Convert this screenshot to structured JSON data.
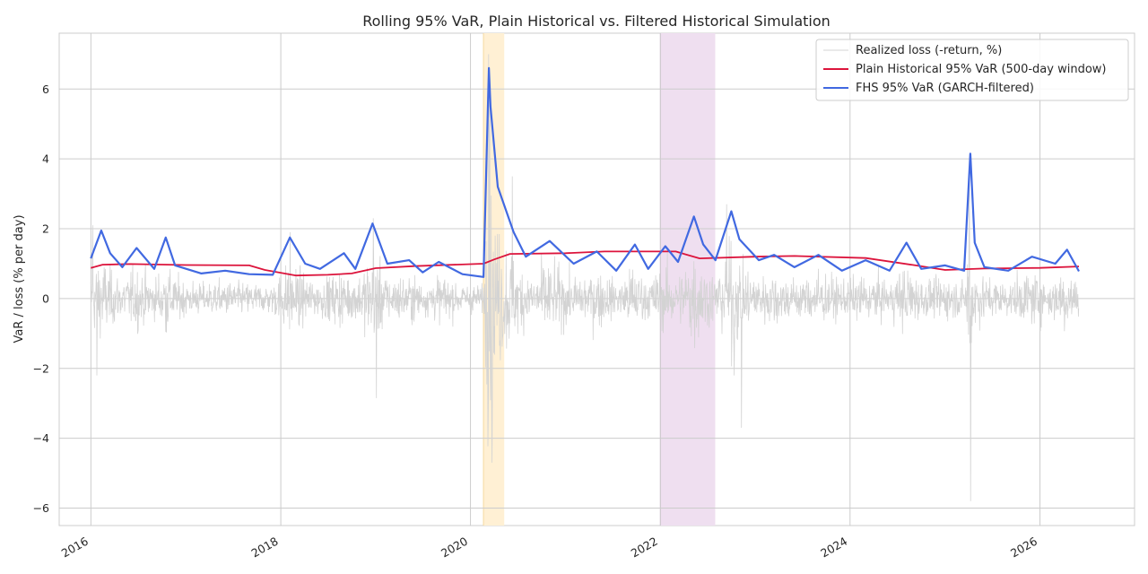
{
  "chart_data": {
    "type": "line",
    "title": "Rolling 95% VaR, Plain Historical vs. Filtered Historical Simulation",
    "xlabel": "",
    "ylabel": "VaR / loss (% per day)",
    "x_ticks": [
      "2016",
      "2018",
      "2020",
      "2022",
      "2024",
      "2026"
    ],
    "y_ticks": [
      "−6",
      "−4",
      "−2",
      "0",
      "2",
      "4",
      "6"
    ],
    "xlim": [
      "2015-09-01",
      "2026-12-31"
    ],
    "ylim": [
      -6.5,
      7.6
    ],
    "grid": true,
    "legend_position": "top-right",
    "shaded_regions": [
      {
        "start": "2020-02-20",
        "end": "2020-05-10",
        "color": "#fff0d4"
      },
      {
        "start": "2022-01-01",
        "end": "2022-07-31",
        "color": "#efdff0"
      }
    ],
    "colors": {
      "realized": "#d3d3d3",
      "hs": "#dc143c",
      "fhs": "#4169e1"
    },
    "series": [
      {
        "name": "Realized loss (-return, %)",
        "style": "thin-grey-noise",
        "x_range": [
          "2016-01-01",
          "2026-05-31"
        ],
        "notable_extremes": [
          {
            "x": "2016-01-08",
            "y": 2.1
          },
          {
            "x": "2016-01-25",
            "y": -2.2
          },
          {
            "x": "2018-02-06",
            "y": 1.9
          },
          {
            "x": "2018-12-24",
            "y": 2.3
          },
          {
            "x": "2019-01-04",
            "y": -2.85
          },
          {
            "x": "2020-03-12",
            "y": 7.0
          },
          {
            "x": "2020-03-16",
            "y": 6.4
          },
          {
            "x": "2020-03-24",
            "y": -4.7
          },
          {
            "x": "2020-06-11",
            "y": 3.5
          },
          {
            "x": "2022-09-13",
            "y": 2.7
          },
          {
            "x": "2022-10-13",
            "y": -2.2
          },
          {
            "x": "2022-11-10",
            "y": -3.7
          },
          {
            "x": "2025-04-04",
            "y": 3.4
          },
          {
            "x": "2025-04-09",
            "y": -5.8
          }
        ]
      },
      {
        "name": "Plain Historical 95% VaR (500-day window)",
        "x": [
          "2016-01-01",
          "2016-02-15",
          "2016-06-01",
          "2017-01-01",
          "2017-09-01",
          "2017-11-01",
          "2018-03-01",
          "2018-07-01",
          "2018-10-01",
          "2019-01-01",
          "2019-06-01",
          "2020-02-20",
          "2020-04-01",
          "2020-06-01",
          "2021-01-01",
          "2021-06-01",
          "2022-03-01",
          "2022-06-01",
          "2023-01-01",
          "2023-06-01",
          "2024-03-01",
          "2024-09-01",
          "2025-01-01",
          "2025-06-01",
          "2026-01-01",
          "2026-05-31"
        ],
        "values": [
          0.88,
          0.97,
          0.99,
          0.96,
          0.95,
          0.82,
          0.66,
          0.68,
          0.72,
          0.87,
          0.93,
          1.0,
          1.12,
          1.28,
          1.3,
          1.35,
          1.35,
          1.15,
          1.2,
          1.22,
          1.16,
          0.96,
          0.82,
          0.86,
          0.88,
          0.92
        ]
      },
      {
        "name": "FHS 95% VaR (GARCH-filtered)",
        "x": [
          "2016-01-01",
          "2016-02-10",
          "2016-03-15",
          "2016-05-01",
          "2016-06-25",
          "2016-09-01",
          "2016-10-15",
          "2016-11-20",
          "2017-03-01",
          "2017-06-01",
          "2017-09-01",
          "2017-12-01",
          "2018-02-05",
          "2018-04-05",
          "2018-06-01",
          "2018-09-01",
          "2018-10-15",
          "2018-12-20",
          "2019-02-15",
          "2019-05-10",
          "2019-07-01",
          "2019-09-01",
          "2019-12-01",
          "2020-02-20",
          "2020-03-12",
          "2020-03-18",
          "2020-04-15",
          "2020-06-15",
          "2020-08-01",
          "2020-11-01",
          "2021-02-01",
          "2021-05-01",
          "2021-07-15",
          "2021-09-25",
          "2021-11-15",
          "2022-01-20",
          "2022-03-10",
          "2022-05-10",
          "2022-06-15",
          "2022-08-01",
          "2022-10-01",
          "2022-11-01",
          "2023-01-15",
          "2023-03-15",
          "2023-06-01",
          "2023-09-01",
          "2023-12-01",
          "2024-03-01",
          "2024-06-01",
          "2024-08-05",
          "2024-10-01",
          "2025-01-01",
          "2025-03-15",
          "2025-04-08",
          "2025-04-25",
          "2025-06-01",
          "2025-09-01",
          "2025-12-01",
          "2026-03-01",
          "2026-04-15",
          "2026-05-31"
        ],
        "values": [
          1.15,
          1.95,
          1.3,
          0.9,
          1.45,
          0.85,
          1.75,
          0.95,
          0.72,
          0.8,
          0.7,
          0.68,
          1.75,
          1.0,
          0.85,
          1.3,
          0.85,
          2.15,
          1.0,
          1.1,
          0.75,
          1.05,
          0.7,
          0.62,
          6.6,
          5.5,
          3.2,
          1.9,
          1.2,
          1.65,
          1.0,
          1.35,
          0.8,
          1.55,
          0.85,
          1.5,
          1.05,
          2.35,
          1.55,
          1.1,
          2.5,
          1.7,
          1.1,
          1.25,
          0.9,
          1.25,
          0.8,
          1.1,
          0.8,
          1.6,
          0.85,
          0.95,
          0.8,
          4.15,
          1.6,
          0.9,
          0.8,
          1.2,
          1.0,
          1.4,
          0.78
        ]
      }
    ]
  }
}
